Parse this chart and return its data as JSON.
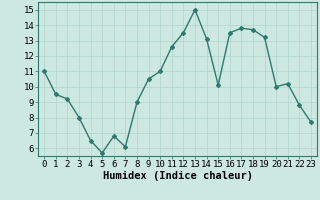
{
  "x": [
    0,
    1,
    2,
    3,
    4,
    5,
    6,
    7,
    8,
    9,
    10,
    11,
    12,
    13,
    14,
    15,
    16,
    17,
    18,
    19,
    20,
    21,
    22,
    23
  ],
  "y": [
    11.0,
    9.5,
    9.2,
    8.0,
    6.5,
    5.7,
    6.8,
    6.1,
    9.0,
    10.5,
    11.0,
    12.6,
    13.5,
    15.0,
    13.1,
    10.1,
    13.5,
    13.8,
    13.7,
    13.2,
    10.0,
    10.2,
    8.8,
    7.7
  ],
  "xlabel": "Humidex (Indice chaleur)",
  "ylim": [
    5.5,
    15.5
  ],
  "xlim": [
    -0.5,
    23.5
  ],
  "yticks": [
    6,
    7,
    8,
    9,
    10,
    11,
    12,
    13,
    14,
    15
  ],
  "xticks": [
    0,
    1,
    2,
    3,
    4,
    5,
    6,
    7,
    8,
    9,
    10,
    11,
    12,
    13,
    14,
    15,
    16,
    17,
    18,
    19,
    20,
    21,
    22,
    23
  ],
  "xtick_labels": [
    "0",
    "1",
    "2",
    "3",
    "4",
    "5",
    "6",
    "7",
    "8",
    "9",
    "10",
    "11",
    "12",
    "13",
    "14",
    "15",
    "16",
    "17",
    "18",
    "19",
    "20",
    "21",
    "22",
    "23"
  ],
  "line_color": "#2d7a6e",
  "marker": "D",
  "marker_size": 2.0,
  "bg_color": "#cce8e0",
  "grid_color": "#b0d4cc",
  "xlabel_fontsize": 7.5,
  "tick_fontsize": 6.5,
  "line_width": 1.0
}
